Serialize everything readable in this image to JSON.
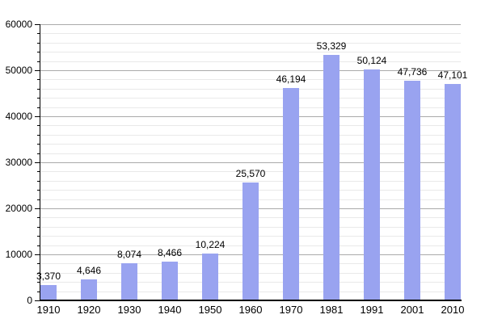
{
  "chart_data": {
    "type": "bar",
    "title": "",
    "xlabel": "",
    "ylabel": "",
    "categories": [
      "1910",
      "1920",
      "1930",
      "1940",
      "1950",
      "1960",
      "1970",
      "1981",
      "1991",
      "2001",
      "2010"
    ],
    "values": [
      3370,
      4646,
      8074,
      8466,
      10224,
      25570,
      46194,
      53329,
      50124,
      47736,
      47101
    ],
    "value_labels": [
      "3,370",
      "4,646",
      "8,074",
      "8,466",
      "10,224",
      "25,570",
      "46,194",
      "53,329",
      "50,124",
      "47,736",
      "47,101"
    ],
    "y_tick_labels": [
      "0",
      "10000",
      "20000",
      "30000",
      "40000",
      "50000",
      "60000"
    ],
    "ylim": [
      0,
      60000
    ],
    "y_major_step": 10000,
    "y_minor_step": 2000,
    "grid": true,
    "legend_position": "none",
    "colors": {
      "bar_fill": "#99a3f0",
      "major_gridline": "#aaaaaa",
      "minor_gridline": "#e9e9e9",
      "axis": "#000000",
      "text": "#000000",
      "background": "#ffffff"
    }
  }
}
